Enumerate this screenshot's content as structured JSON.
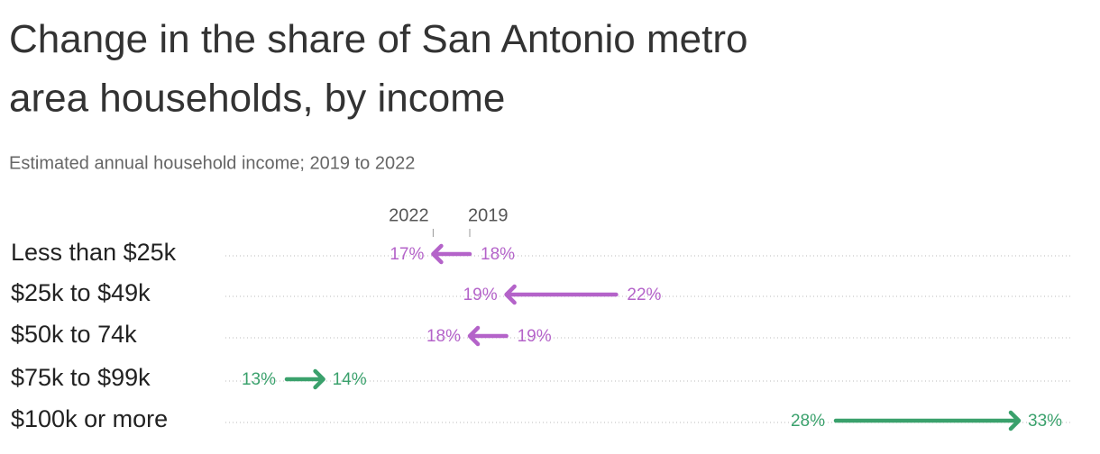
{
  "chart_data": {
    "type": "arrow",
    "title": "Change in the share of San Antonio metro area households, by income",
    "subtitle": "Estimated annual household income; 2019 to 2022",
    "categories": [
      "Less than $25k",
      "$25k to $49k",
      "$50k to 74k",
      "$75k to $99k",
      "$100k or more"
    ],
    "series": [
      {
        "name": "2019",
        "values": [
          18,
          22,
          19,
          13,
          28
        ],
        "value_labels": [
          "18%",
          "22%",
          "19%",
          "13%",
          "28%"
        ]
      },
      {
        "name": "2022",
        "values": [
          17,
          19,
          18,
          14,
          33
        ],
        "value_labels": [
          "17%",
          "19%",
          "18%",
          "14%",
          "33%"
        ]
      }
    ],
    "colors": {
      "increase": "#3aa16c",
      "decrease": "#b463c9"
    },
    "grid": true
  }
}
